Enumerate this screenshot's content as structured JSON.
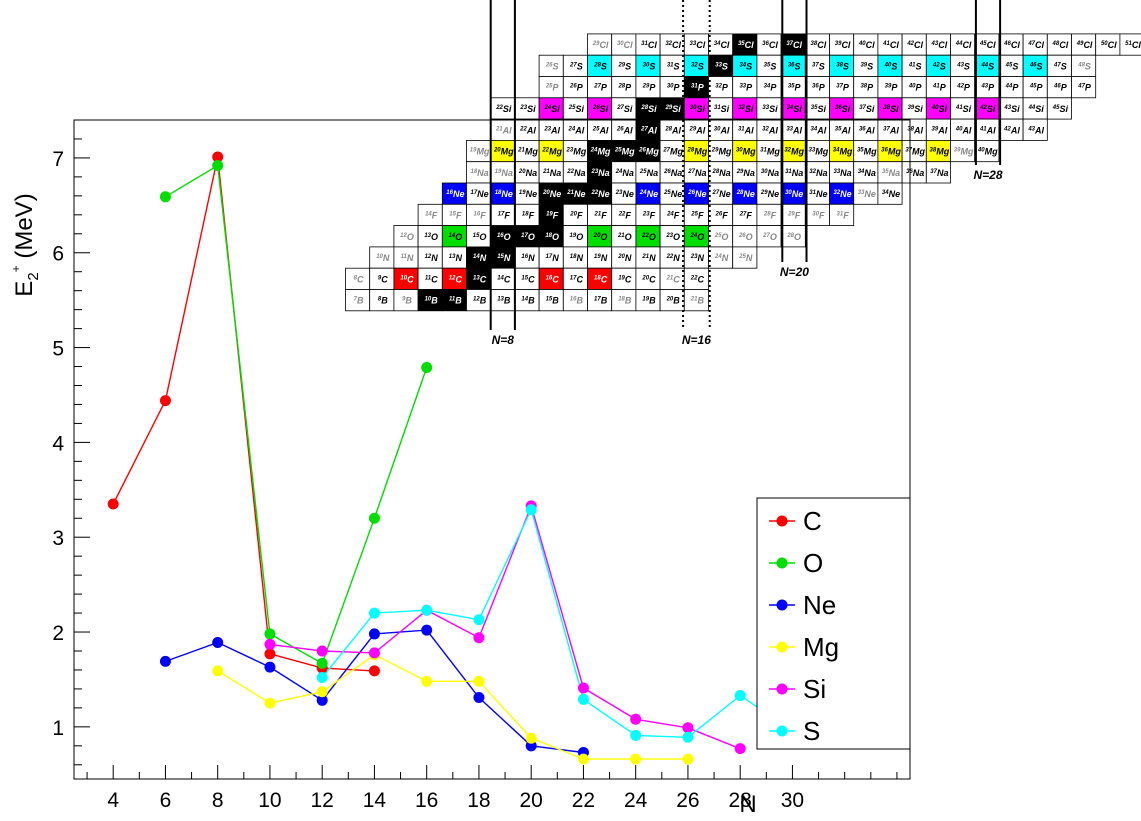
{
  "chart_data": {
    "type": "line",
    "xlabel": "N",
    "ylabel": "E",
    "ylabel_sub": "2",
    "ylabel_sup": "+",
    "ylabel_unit": " (MeV)",
    "xlim": [
      2.5,
      34.5
    ],
    "ylim": [
      0.45,
      7.4
    ],
    "x_ticks": [
      4,
      6,
      8,
      10,
      12,
      14,
      16,
      18,
      20,
      22,
      24,
      26,
      28,
      30
    ],
    "y_ticks": [
      1,
      2,
      3,
      4,
      5,
      6,
      7
    ],
    "grid": false,
    "legend_position": "bottom-right",
    "series": [
      {
        "name": "C",
        "color": "#ff0000",
        "x": [
          4,
          6,
          8,
          10,
          12,
          14
        ],
        "y": [
          3.35,
          4.44,
          7.01,
          1.77,
          1.62,
          1.59
        ]
      },
      {
        "name": "O",
        "color": "#00dd00",
        "x": [
          6,
          8,
          10,
          12,
          14,
          16
        ],
        "y": [
          6.59,
          6.92,
          1.98,
          1.67,
          3.2,
          4.79
        ]
      },
      {
        "name": "Ne",
        "color": "#0000ff",
        "x": [
          6,
          8,
          10,
          12,
          14,
          16,
          18,
          20,
          22
        ],
        "y": [
          1.69,
          1.89,
          1.63,
          1.28,
          1.98,
          2.02,
          1.31,
          0.8,
          0.73
        ]
      },
      {
        "name": "Mg",
        "color": "#ffff00",
        "x": [
          8,
          10,
          12,
          14,
          16,
          18,
          20,
          22,
          24,
          26
        ],
        "y": [
          1.59,
          1.25,
          1.37,
          1.76,
          1.48,
          1.48,
          0.88,
          0.66,
          0.66,
          0.66
        ]
      },
      {
        "name": "Si",
        "color": "#ff00ff",
        "x": [
          10,
          12,
          14,
          16,
          18,
          20,
          22,
          24,
          26,
          28
        ],
        "y": [
          1.87,
          1.8,
          1.78,
          2.23,
          1.94,
          3.33,
          1.41,
          1.08,
          0.99,
          0.77
        ]
      },
      {
        "name": "S",
        "color": "#00ffff",
        "x": [
          12,
          14,
          16,
          18,
          20,
          22,
          24,
          26,
          28,
          30
        ],
        "y": [
          1.52,
          2.2,
          2.23,
          2.13,
          3.29,
          1.29,
          0.91,
          0.89,
          1.33,
          0.96
        ]
      }
    ],
    "inset": {
      "type": "nuclide-chart",
      "magic_lines": [
        {
          "label": "N=8",
          "style": "solid"
        },
        {
          "label": "N=16",
          "style": "dotted"
        },
        {
          "label": "N=20",
          "style": "solid"
        },
        {
          "label": "N=28",
          "style": "solid"
        }
      ],
      "rows": [
        {
          "element": "Cl",
          "Z": 17,
          "first": 12,
          "last": 34,
          "stable": [
            18,
            20
          ],
          "black": [
            18,
            20
          ],
          "grey": [
            12,
            13
          ],
          "fill": {}
        },
        {
          "element": "S",
          "Z": 16,
          "first": 10,
          "last": 32,
          "black": [
            16,
            17
          ],
          "grey": [
            10,
            32
          ],
          "fill": {
            "12": "#00ffff",
            "14": "#00ffff",
            "16": "#00ffff",
            "18": "#00ffff",
            "20": "#00ffff",
            "22": "#00ffff",
            "24": "#00ffff",
            "26": "#00ffff",
            "28": "#00ffff",
            "30": "#00ffff"
          }
        },
        {
          "element": "P",
          "Z": 15,
          "first": 10,
          "last": 32,
          "black": [
            16
          ],
          "grey": [
            10
          ],
          "fill": {}
        },
        {
          "element": "Si",
          "Z": 14,
          "first": 8,
          "last": 31,
          "black": [
            14,
            15
          ],
          "grey": [],
          "fill": {
            "10": "#ff00ff",
            "12": "#ff00ff",
            "16": "#ff00ff",
            "18": "#ff00ff",
            "20": "#ff00ff",
            "22": "#ff00ff",
            "24": "#ff00ff",
            "26": "#ff00ff",
            "28": "#ff00ff"
          }
        },
        {
          "element": "Al",
          "Z": 13,
          "first": 8,
          "last": 30,
          "black": [
            14
          ],
          "grey": [
            8
          ],
          "fill": {}
        },
        {
          "element": "Mg",
          "Z": 12,
          "first": 7,
          "last": 28,
          "black": [
            12,
            13,
            14
          ],
          "grey": [
            7,
            27
          ],
          "fill": {
            "8": "#ffff00",
            "10": "#ffff00",
            "16": "#ffff00",
            "18": "#ffff00",
            "20": "#ffff00",
            "22": "#ffff00",
            "24": "#ffff00",
            "26": "#ffff00"
          }
        },
        {
          "element": "Na",
          "Z": 11,
          "first": 7,
          "last": 26,
          "black": [
            12
          ],
          "grey": [
            7,
            8,
            24
          ],
          "fill": {}
        },
        {
          "element": "Ne",
          "Z": 10,
          "first": 6,
          "last": 24,
          "black": [
            10,
            11,
            12
          ],
          "grey": [
            23
          ],
          "fill": {
            "6": "#0000ff",
            "8": "#0000ff",
            "14": "#0000ff",
            "16": "#0000ff",
            "18": "#0000ff",
            "20": "#0000ff",
            "22": "#0000ff"
          }
        },
        {
          "element": "F",
          "Z": 9,
          "first": 5,
          "last": 22,
          "black": [
            10
          ],
          "grey": [
            5,
            6,
            7,
            19,
            20,
            21,
            22
          ],
          "fill": {}
        },
        {
          "element": "O",
          "Z": 8,
          "first": 4,
          "last": 20,
          "black": [
            8,
            9,
            10
          ],
          "grey": [
            4,
            17,
            18,
            19,
            20
          ],
          "fill": {
            "6": "#00dd00",
            "12": "#00dd00",
            "14": "#00dd00",
            "16": "#00dd00"
          }
        },
        {
          "element": "N",
          "Z": 7,
          "first": 3,
          "last": 18,
          "black": [
            7,
            8
          ],
          "grey": [
            3,
            4,
            17,
            18
          ],
          "fill": {}
        },
        {
          "element": "C",
          "Z": 6,
          "first": 2,
          "last": 16,
          "black": [
            6,
            7
          ],
          "grey": [
            2,
            15
          ],
          "fill": {
            "4": "#ff0000",
            "6": "#ff0000",
            "10": "#ff0000",
            "12": "#ff0000"
          }
        },
        {
          "element": "B",
          "Z": 5,
          "first": 2,
          "last": 16,
          "black": [
            5,
            6
          ],
          "grey": [
            2,
            4,
            11,
            13,
            16
          ],
          "fill": {}
        }
      ]
    }
  }
}
